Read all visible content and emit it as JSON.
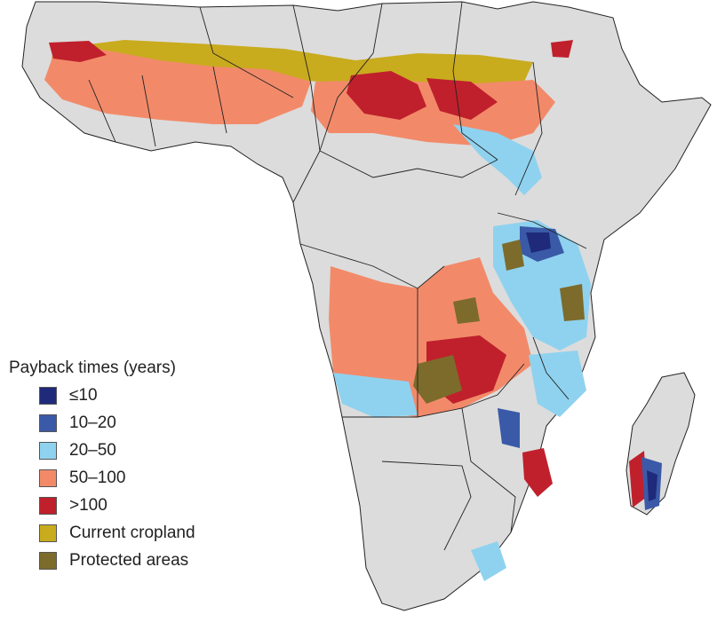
{
  "legend": {
    "title": "Payback times (years)",
    "items": [
      {
        "label": "≤10",
        "color": "#1f2a7a"
      },
      {
        "label": "10–20",
        "color": "#3a5aa8"
      },
      {
        "label": "20–50",
        "color": "#8fd2ef"
      },
      {
        "label": "50–100",
        "color": "#f28a6a"
      },
      {
        "label": ">100",
        "color": "#c0202c"
      },
      {
        "label": "Current cropland",
        "color": "#c9ab1e"
      },
      {
        "label": "Protected areas",
        "color": "#7d6b2b"
      }
    ]
  },
  "colors": {
    "land": "#dcdcdc",
    "border": "#222222",
    "sea": "#ffffff"
  }
}
